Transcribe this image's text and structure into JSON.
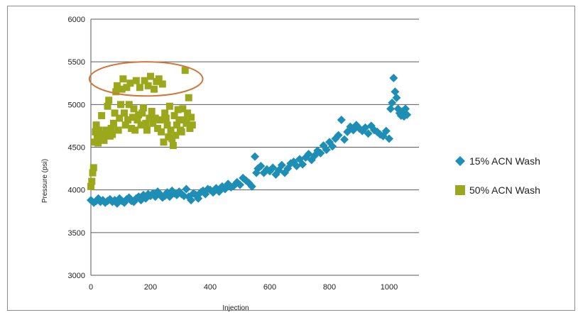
{
  "colors": {
    "series_15": "#1d8fb7",
    "series_50": "#9ca81c",
    "highlight": "#d0773a",
    "grid": "#5a5a5a"
  },
  "chart_data": {
    "type": "scatter",
    "title": "",
    "xlabel": "Injection",
    "ylabel": "Pressure (psi)",
    "xlim": [
      0,
      1100
    ],
    "ylim": [
      3000,
      6000
    ],
    "xticks": [
      0,
      200,
      400,
      600,
      800,
      1000
    ],
    "yticks": [
      3000,
      3500,
      4000,
      4500,
      5000,
      5500,
      6000
    ],
    "grid": "horizontal",
    "legend_position": "right",
    "annotation": {
      "shape": "ellipse",
      "center": [
        185,
        5300
      ],
      "rx": 190,
      "ry": 200
    },
    "series": [
      {
        "name": "15% ACN Wash",
        "marker": "diamond",
        "color": "#1d8fb7",
        "points": [
          [
            0,
            3880
          ],
          [
            10,
            3850
          ],
          [
            18,
            3870
          ],
          [
            25,
            3900
          ],
          [
            32,
            3860
          ],
          [
            40,
            3880
          ],
          [
            48,
            3850
          ],
          [
            56,
            3870
          ],
          [
            64,
            3890
          ],
          [
            72,
            3860
          ],
          [
            80,
            3880
          ],
          [
            88,
            3840
          ],
          [
            96,
            3900
          ],
          [
            104,
            3870
          ],
          [
            112,
            3850
          ],
          [
            120,
            3890
          ],
          [
            128,
            3910
          ],
          [
            136,
            3870
          ],
          [
            144,
            3860
          ],
          [
            152,
            3900
          ],
          [
            160,
            3920
          ],
          [
            168,
            3880
          ],
          [
            176,
            3940
          ],
          [
            184,
            3900
          ],
          [
            192,
            3950
          ],
          [
            200,
            3930
          ],
          [
            208,
            3960
          ],
          [
            216,
            3920
          ],
          [
            224,
            3980
          ],
          [
            232,
            3950
          ],
          [
            240,
            3910
          ],
          [
            248,
            3930
          ],
          [
            256,
            3970
          ],
          [
            264,
            3920
          ],
          [
            272,
            3990
          ],
          [
            280,
            3960
          ],
          [
            288,
            3940
          ],
          [
            296,
            3980
          ],
          [
            304,
            3950
          ],
          [
            312,
            3930
          ],
          [
            320,
            4010
          ],
          [
            328,
            3920
          ],
          [
            336,
            3880
          ],
          [
            344,
            3960
          ],
          [
            352,
            3940
          ],
          [
            360,
            3900
          ],
          [
            368,
            3970
          ],
          [
            376,
            3990
          ],
          [
            384,
            3950
          ],
          [
            392,
            4010
          ],
          [
            400,
            4000
          ],
          [
            410,
            3970
          ],
          [
            420,
            4020
          ],
          [
            430,
            3980
          ],
          [
            440,
            4040
          ],
          [
            450,
            4010
          ],
          [
            460,
            4070
          ],
          [
            470,
            4030
          ],
          [
            480,
            4050
          ],
          [
            490,
            4090
          ],
          [
            500,
            4060
          ],
          [
            510,
            4140
          ],
          [
            520,
            4110
          ],
          [
            530,
            4080
          ],
          [
            540,
            4040
          ],
          [
            550,
            4390
          ],
          [
            555,
            4200
          ],
          [
            560,
            4250
          ],
          [
            570,
            4280
          ],
          [
            580,
            4200
          ],
          [
            590,
            4240
          ],
          [
            600,
            4220
          ],
          [
            610,
            4260
          ],
          [
            620,
            4180
          ],
          [
            630,
            4230
          ],
          [
            640,
            4290
          ],
          [
            650,
            4200
          ],
          [
            660,
            4250
          ],
          [
            670,
            4310
          ],
          [
            680,
            4330
          ],
          [
            690,
            4280
          ],
          [
            700,
            4360
          ],
          [
            710,
            4300
          ],
          [
            720,
            4380
          ],
          [
            730,
            4420
          ],
          [
            740,
            4350
          ],
          [
            750,
            4400
          ],
          [
            760,
            4460
          ],
          [
            770,
            4430
          ],
          [
            780,
            4520
          ],
          [
            790,
            4470
          ],
          [
            800,
            4560
          ],
          [
            810,
            4510
          ],
          [
            820,
            4600
          ],
          [
            830,
            4640
          ],
          [
            840,
            4820
          ],
          [
            850,
            4590
          ],
          [
            860,
            4680
          ],
          [
            870,
            4740
          ],
          [
            880,
            4700
          ],
          [
            890,
            4760
          ],
          [
            900,
            4720
          ],
          [
            910,
            4690
          ],
          [
            920,
            4730
          ],
          [
            930,
            4660
          ],
          [
            940,
            4750
          ],
          [
            950,
            4700
          ],
          [
            960,
            4680
          ],
          [
            970,
            4650
          ],
          [
            980,
            4630
          ],
          [
            990,
            4690
          ],
          [
            1000,
            4600
          ],
          [
            1005,
            4950
          ],
          [
            1010,
            5020
          ],
          [
            1015,
            5310
          ],
          [
            1020,
            5150
          ],
          [
            1025,
            5080
          ],
          [
            1030,
            4950
          ],
          [
            1035,
            4900
          ],
          [
            1040,
            4870
          ],
          [
            1045,
            4920
          ],
          [
            1050,
            4860
          ],
          [
            1055,
            4950
          ],
          [
            1060,
            4880
          ]
        ]
      },
      {
        "name": "50% ACN Wash",
        "marker": "square",
        "color": "#9ca81c",
        "points": [
          [
            0,
            4040
          ],
          [
            3,
            4100
          ],
          [
            6,
            4200
          ],
          [
            9,
            4260
          ],
          [
            12,
            4560
          ],
          [
            15,
            4680
          ],
          [
            18,
            4760
          ],
          [
            21,
            4620
          ],
          [
            24,
            4550
          ],
          [
            28,
            4700
          ],
          [
            32,
            4600
          ],
          [
            36,
            4870
          ],
          [
            40,
            4640
          ],
          [
            44,
            4580
          ],
          [
            48,
            4650
          ],
          [
            52,
            4700
          ],
          [
            56,
            4980
          ],
          [
            60,
            5050
          ],
          [
            64,
            4630
          ],
          [
            68,
            4720
          ],
          [
            72,
            4650
          ],
          [
            76,
            4780
          ],
          [
            80,
            4900
          ],
          [
            84,
            5150
          ],
          [
            88,
            5220
          ],
          [
            92,
            4700
          ],
          [
            96,
            4840
          ],
          [
            100,
            5000
          ],
          [
            104,
            5180
          ],
          [
            108,
            5300
          ],
          [
            112,
            4900
          ],
          [
            116,
            4760
          ],
          [
            120,
            5200
          ],
          [
            124,
            4820
          ],
          [
            128,
            5000
          ],
          [
            132,
            5250
          ],
          [
            136,
            4720
          ],
          [
            140,
            4850
          ],
          [
            144,
            4950
          ],
          [
            148,
            4700
          ],
          [
            152,
            5280
          ],
          [
            156,
            4820
          ],
          [
            160,
            4880
          ],
          [
            164,
            5200
          ],
          [
            168,
            4760
          ],
          [
            172,
            4900
          ],
          [
            176,
            4960
          ],
          [
            180,
            5280
          ],
          [
            184,
            4780
          ],
          [
            188,
            4700
          ],
          [
            192,
            5220
          ],
          [
            196,
            4840
          ],
          [
            200,
            5330
          ],
          [
            204,
            4920
          ],
          [
            208,
            4780
          ],
          [
            212,
            5180
          ],
          [
            216,
            4840
          ],
          [
            220,
            5270
          ],
          [
            224,
            4720
          ],
          [
            228,
            5300
          ],
          [
            232,
            4820
          ],
          [
            236,
            4680
          ],
          [
            240,
            5240
          ],
          [
            244,
            4560
          ],
          [
            248,
            4900
          ],
          [
            252,
            4840
          ],
          [
            256,
            4760
          ],
          [
            260,
            4620
          ],
          [
            264,
            4980
          ],
          [
            268,
            4700
          ],
          [
            272,
            4600
          ],
          [
            276,
            4520
          ],
          [
            280,
            4870
          ],
          [
            284,
            4640
          ],
          [
            288,
            4760
          ],
          [
            292,
            4940
          ],
          [
            296,
            4820
          ],
          [
            300,
            4700
          ],
          [
            304,
            4680
          ],
          [
            308,
            4950
          ],
          [
            312,
            4820
          ],
          [
            316,
            5400
          ],
          [
            320,
            4780
          ],
          [
            324,
            4900
          ],
          [
            328,
            5080
          ],
          [
            332,
            4720
          ],
          [
            336,
            4850
          ],
          [
            340,
            4760
          ]
        ]
      }
    ]
  }
}
